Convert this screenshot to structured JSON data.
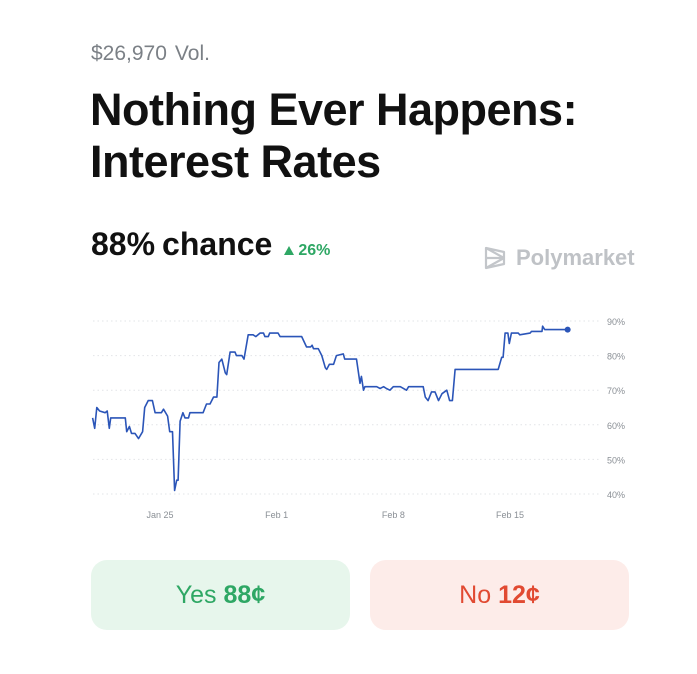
{
  "header": {
    "volume": "$26,970",
    "volume_suffix": "Vol."
  },
  "title": "Nothing Ever Happens: Interest Rates",
  "chance": {
    "value": "88%",
    "label": "chance",
    "delta": "26%",
    "delta_direction": "up"
  },
  "brand": {
    "name": "Polymarket",
    "icon": "polymarket-logo-icon"
  },
  "colors": {
    "line": "#2b55b8",
    "up": "#2ea764",
    "yes": "#2ea764",
    "no": "#e14a32"
  },
  "chart_data": {
    "type": "line",
    "title": "",
    "xlabel": "",
    "ylabel": "",
    "ylim": [
      40,
      90
    ],
    "y_ticks": [
      "40%",
      "50%",
      "60%",
      "70%",
      "80%",
      "90%"
    ],
    "y_tick_values": [
      40,
      50,
      60,
      70,
      80,
      90
    ],
    "x_ticks": [
      "Jan 25",
      "Feb 1",
      "Feb 8",
      "Feb 15"
    ],
    "y_axis_position": "right",
    "grid": "horizontal dotted",
    "series": [
      {
        "points": [
          [
            "Jan 20 23:00",
            62
          ],
          [
            "Jan 21 02:00",
            59
          ],
          [
            "Jan 21 05:00",
            65
          ],
          [
            "Jan 21 09:00",
            64
          ],
          [
            "Jan 21 17:00",
            63.5
          ],
          [
            "Jan 21 20:00",
            64
          ],
          [
            "Jan 21 23:00",
            59
          ],
          [
            "Jan 22 01:00",
            62
          ],
          [
            "Jan 22 22:00",
            62
          ],
          [
            "Jan 23 00:00",
            58
          ],
          [
            "Jan 23 04:00",
            59.5
          ],
          [
            "Jan 23 07:00",
            57.5
          ],
          [
            "Jan 23 12:00",
            57.5
          ],
          [
            "Jan 23 17:00",
            56
          ],
          [
            "Jan 23 23:00",
            58
          ],
          [
            "Jan 24 02:00",
            65
          ],
          [
            "Jan 24 07:00",
            67
          ],
          [
            "Jan 24 13:00",
            67
          ],
          [
            "Jan 24 17:00",
            63.5
          ],
          [
            "Jan 25 02:00",
            63.5
          ],
          [
            "Jan 25 05:00",
            64.5
          ],
          [
            "Jan 25 11:00",
            62.5
          ],
          [
            "Jan 25 14:00",
            58
          ],
          [
            "Jan 25 18:00",
            58
          ],
          [
            "Jan 25 21:00",
            41
          ],
          [
            "Jan 26 00:00",
            44
          ],
          [
            "Jan 26 02:00",
            44
          ],
          [
            "Jan 26 05:00",
            61
          ],
          [
            "Jan 26 09:00",
            63.5
          ],
          [
            "Jan 26 12:00",
            62
          ],
          [
            "Jan 26 17:00",
            62
          ],
          [
            "Jan 26 19:00",
            63.5
          ],
          [
            "Jan 27 14:00",
            63.5
          ],
          [
            "Jan 27 19:00",
            66
          ],
          [
            "Jan 28 00:00",
            66
          ],
          [
            "Jan 28 05:00",
            68
          ],
          [
            "Jan 28 10:00",
            68
          ],
          [
            "Jan 28 13:00",
            78
          ],
          [
            "Jan 28 17:00",
            79
          ],
          [
            "Jan 28 22:00",
            75
          ],
          [
            "Jan 29 00:00",
            74.5
          ],
          [
            "Jan 29 05:00",
            81
          ],
          [
            "Jan 29 12:00",
            81
          ],
          [
            "Jan 29 14:00",
            80
          ],
          [
            "Jan 29 22:00",
            80
          ],
          [
            "Jan 30 01:00",
            79
          ],
          [
            "Jan 30 07:00",
            86
          ],
          [
            "Jan 30 14:00",
            86
          ],
          [
            "Jan 30 18:00",
            85.5
          ],
          [
            "Jan 31 00:00",
            86.5
          ],
          [
            "Jan 31 05:00",
            86.5
          ],
          [
            "Jan 31 07:00",
            85.5
          ],
          [
            "Jan 31 12:00",
            85.5
          ],
          [
            "Jan 31 14:00",
            86.5
          ],
          [
            "Feb 1 02:00",
            86.5
          ],
          [
            "Feb 1 05:00",
            85.5
          ],
          [
            "Feb 2 12:00",
            85.5
          ],
          [
            "Feb 2 19:00",
            82.5
          ],
          [
            "Feb 3 01:00",
            82.5
          ],
          [
            "Feb 3 03:00",
            83
          ],
          [
            "Feb 3 05:00",
            82
          ],
          [
            "Feb 3 12:00",
            82
          ],
          [
            "Feb 3 17:00",
            80
          ],
          [
            "Feb 3 22:00",
            76.5
          ],
          [
            "Feb 4 00:00",
            76
          ],
          [
            "Feb 4 04:00",
            77.5
          ],
          [
            "Feb 4 10:00",
            77.5
          ],
          [
            "Feb 4 14:00",
            80
          ],
          [
            "Feb 5 00:00",
            80.5
          ],
          [
            "Feb 5 02:00",
            79
          ],
          [
            "Feb 5 19:00",
            79
          ],
          [
            "Feb 6 00:00",
            72
          ],
          [
            "Feb 6 02:00",
            74
          ],
          [
            "Feb 6 05:00",
            70
          ],
          [
            "Feb 6 07:00",
            71
          ],
          [
            "Feb 7 00:00",
            71
          ],
          [
            "Feb 7 05:00",
            70.5
          ],
          [
            "Feb 7 10:00",
            71
          ],
          [
            "Feb 7 14:00",
            70.5
          ],
          [
            "Feb 7 19:00",
            70
          ],
          [
            "Feb 8 00:00",
            71
          ],
          [
            "Feb 8 10:00",
            71
          ],
          [
            "Feb 8 19:00",
            70
          ],
          [
            "Feb 8 22:00",
            71
          ],
          [
            "Feb 9 19:00",
            71
          ],
          [
            "Feb 9 22:00",
            68
          ],
          [
            "Feb 10 02:00",
            67
          ],
          [
            "Feb 10 07:00",
            69.5
          ],
          [
            "Feb 10 12:00",
            69.5
          ],
          [
            "Feb 10 17:00",
            67
          ],
          [
            "Feb 10 22:00",
            69
          ],
          [
            "Feb 11 05:00",
            70
          ],
          [
            "Feb 11 09:00",
            67
          ],
          [
            "Feb 11 13:00",
            67
          ],
          [
            "Feb 11 17:00",
            76
          ],
          [
            "Feb 14 07:00",
            76
          ],
          [
            "Feb 14 12:00",
            79.5
          ],
          [
            "Feb 14 14:00",
            79.5
          ],
          [
            "Feb 14 17:00",
            86.5
          ],
          [
            "Feb 14 21:00",
            86.5
          ],
          [
            "Feb 14 23:00",
            83.5
          ],
          [
            "Feb 15 02:00",
            86.5
          ],
          [
            "Feb 15 12:00",
            86.5
          ],
          [
            "Feb 15 14:00",
            86
          ],
          [
            "Feb 16 05:00",
            86.5
          ],
          [
            "Feb 16 07:00",
            87
          ],
          [
            "Feb 16 22:00",
            87
          ],
          [
            "Feb 16 23:00",
            88.5
          ],
          [
            "Feb 17 02:00",
            87.5
          ],
          [
            "Feb 18 11:00",
            87.5
          ]
        ]
      }
    ]
  },
  "buttons": {
    "yes": {
      "label": "Yes",
      "price": "88¢"
    },
    "no": {
      "label": "No",
      "price": "12¢"
    }
  }
}
